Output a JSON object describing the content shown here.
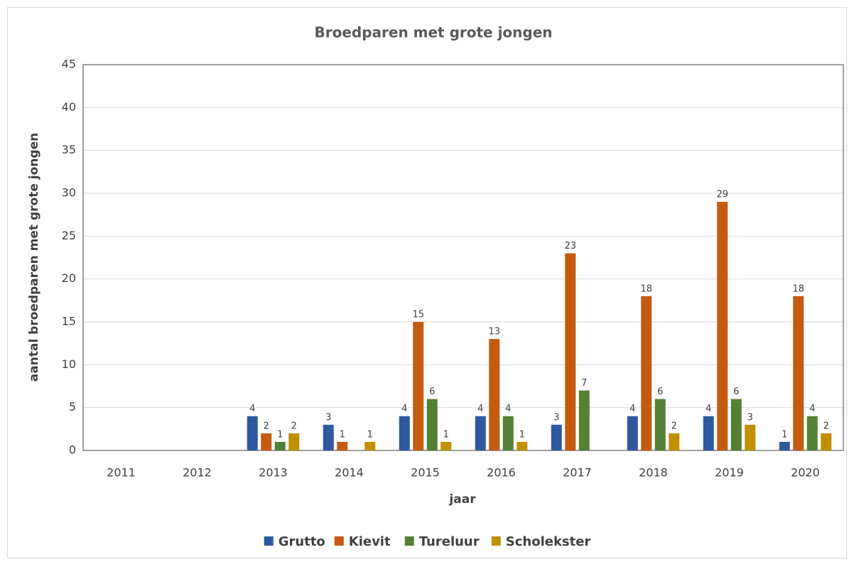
{
  "chart_data": {
    "type": "bar",
    "title": "Broedparen met grote jongen",
    "x_label": "jaar",
    "y_label": "aantal broedparen met grote jongen",
    "categories": [
      "2011",
      "2012",
      "2013",
      "2014",
      "2015",
      "2016",
      "2017",
      "2018",
      "2019",
      "2020"
    ],
    "series": [
      {
        "name": "Grutto",
        "color": "#2f58a0",
        "values": [
          null,
          null,
          4,
          3,
          4,
          4,
          3,
          4,
          4,
          1
        ]
      },
      {
        "name": "Kievit",
        "color": "#c55a11",
        "values": [
          null,
          null,
          2,
          1,
          15,
          13,
          23,
          18,
          29,
          18
        ]
      },
      {
        "name": "Tureluur",
        "color": "#538135",
        "values": [
          null,
          null,
          1,
          null,
          6,
          4,
          7,
          6,
          6,
          4
        ]
      },
      {
        "name": "Scholekster",
        "color": "#bf9000",
        "values": [
          null,
          null,
          2,
          1,
          1,
          1,
          null,
          2,
          3,
          2
        ]
      }
    ],
    "ylim": [
      0,
      45
    ],
    "yticks": [
      0,
      5,
      10,
      15,
      20,
      25,
      30,
      35,
      40,
      45
    ],
    "grid": true,
    "legend": "bottom"
  }
}
